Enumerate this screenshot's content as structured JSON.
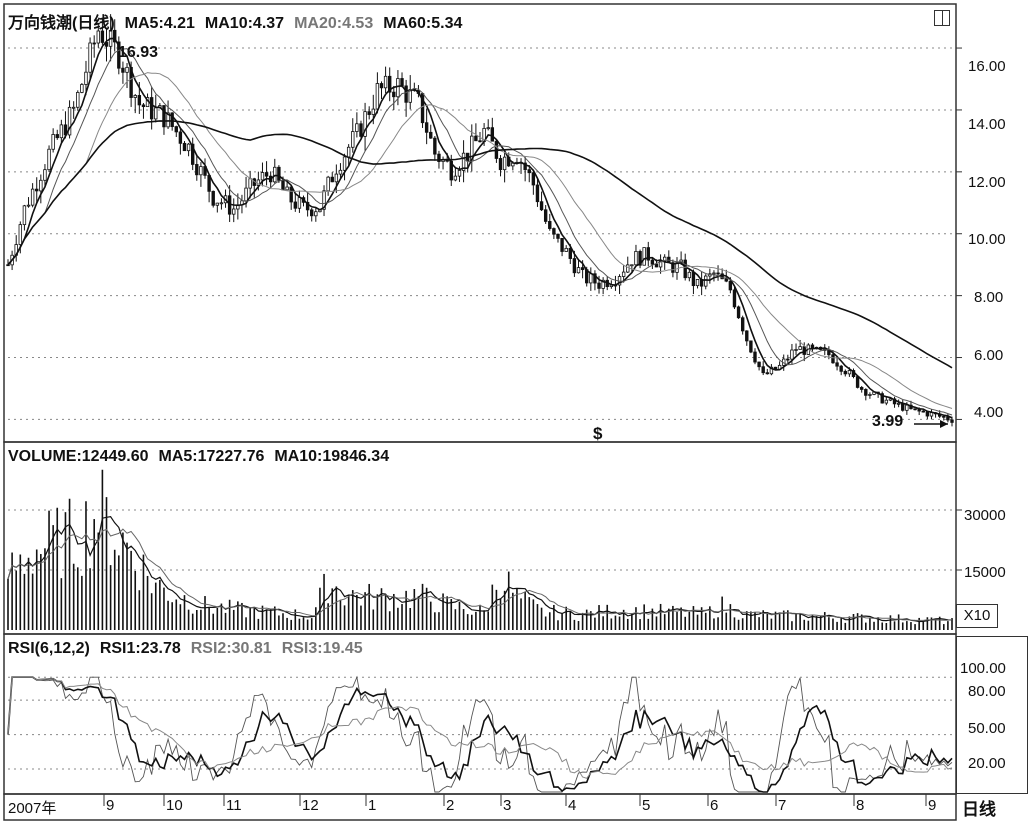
{
  "chart_data": [
    {
      "type": "candlestick",
      "panel": "price",
      "title": "万向钱潮(日线)",
      "indicators": [
        {
          "name": "MA5",
          "label": "MA5:4.21",
          "value": 4.21
        },
        {
          "name": "MA10",
          "label": "MA10:4.37",
          "value": 4.37
        },
        {
          "name": "MA20",
          "label": "MA20:4.53",
          "value": 4.53
        },
        {
          "name": "MA60",
          "label": "MA60:5.34",
          "value": 5.34
        }
      ],
      "y_ticks": [
        "16.00",
        "14.00",
        "12.00",
        "10.00",
        "8.00",
        "6.00",
        "4.00"
      ],
      "ylim": [
        3.4,
        17.1
      ],
      "x_ticks": [
        "2007年",
        "9",
        "10",
        "11",
        "12",
        "1",
        "2",
        "3",
        "4",
        "5",
        "6",
        "7",
        "8",
        "9"
      ],
      "close_path": [
        [
          0,
          9.0
        ],
        [
          4,
          10.8
        ],
        [
          10,
          12.6
        ],
        [
          16,
          14.0
        ],
        [
          22,
          16.6
        ],
        [
          27,
          15.8
        ],
        [
          32,
          14.2
        ],
        [
          38,
          13.8
        ],
        [
          44,
          12.8
        ],
        [
          50,
          11.2
        ],
        [
          55,
          10.8
        ],
        [
          60,
          11.6
        ],
        [
          64,
          12.0
        ],
        [
          68,
          11.2
        ],
        [
          72,
          10.8
        ],
        [
          76,
          10.9
        ],
        [
          80,
          12.2
        ],
        [
          85,
          13.2
        ],
        [
          90,
          14.6
        ],
        [
          95,
          14.8
        ],
        [
          100,
          14.2
        ],
        [
          104,
          12.6
        ],
        [
          108,
          12.1
        ],
        [
          112,
          12.6
        ],
        [
          116,
          13.3
        ],
        [
          120,
          12.4
        ],
        [
          124,
          12.6
        ],
        [
          128,
          11.6
        ],
        [
          132,
          10.0
        ],
        [
          136,
          9.4
        ],
        [
          140,
          8.6
        ],
        [
          144,
          8.4
        ],
        [
          148,
          8.6
        ],
        [
          152,
          9.2
        ],
        [
          156,
          9.3
        ],
        [
          160,
          9.0
        ],
        [
          164,
          8.9
        ],
        [
          168,
          8.3
        ],
        [
          172,
          8.7
        ],
        [
          176,
          8.2
        ],
        [
          180,
          6.6
        ],
        [
          184,
          5.4
        ],
        [
          188,
          5.7
        ],
        [
          192,
          6.3
        ],
        [
          196,
          6.2
        ],
        [
          200,
          6.1
        ],
        [
          204,
          5.6
        ],
        [
          208,
          5.0
        ],
        [
          212,
          4.7
        ],
        [
          216,
          4.5
        ],
        [
          220,
          4.3
        ],
        [
          224,
          4.2
        ],
        [
          230,
          4.0
        ]
      ],
      "annotations": [
        {
          "text": "16.93",
          "value": 16.93,
          "kind": "high"
        },
        {
          "text": "3.99",
          "value": 3.99,
          "kind": "low"
        },
        {
          "text": "$",
          "kind": "marker"
        }
      ]
    },
    {
      "type": "bar",
      "panel": "volume",
      "indicators": [
        {
          "name": "VOLUME",
          "label": "VOLUME:12449.60",
          "value": 12449.6
        },
        {
          "name": "MA5",
          "label": "MA5:17227.76",
          "value": 17227.76
        },
        {
          "name": "MA10",
          "label": "MA10:19846.34",
          "value": 19846.34
        }
      ],
      "y_ticks": [
        "30000",
        "15000"
      ],
      "ylim": [
        0,
        40000
      ],
      "unit": "X10",
      "level_path": [
        [
          0,
          14000
        ],
        [
          6,
          20000
        ],
        [
          12,
          22000
        ],
        [
          18,
          24000
        ],
        [
          22,
          30000
        ],
        [
          26,
          24000
        ],
        [
          30,
          20000
        ],
        [
          35,
          12000
        ],
        [
          40,
          9000
        ],
        [
          48,
          6000
        ],
        [
          56,
          5000
        ],
        [
          66,
          4200
        ],
        [
          74,
          3500
        ],
        [
          78,
          12000
        ],
        [
          82,
          9000
        ],
        [
          90,
          8000
        ],
        [
          100,
          8500
        ],
        [
          108,
          6000
        ],
        [
          116,
          4500
        ],
        [
          120,
          14000
        ],
        [
          124,
          8000
        ],
        [
          130,
          4500
        ],
        [
          140,
          4000
        ],
        [
          150,
          5000
        ],
        [
          160,
          4500
        ],
        [
          170,
          4000
        ],
        [
          174,
          6000
        ],
        [
          180,
          3800
        ],
        [
          190,
          3500
        ],
        [
          200,
          3300
        ],
        [
          210,
          3000
        ],
        [
          220,
          2700
        ],
        [
          230,
          2200
        ]
      ]
    },
    {
      "type": "line",
      "panel": "rsi",
      "title": "RSI(6,12,2)",
      "indicators": [
        {
          "name": "RSI1",
          "label": "RSI1:23.78",
          "value": 23.78
        },
        {
          "name": "RSI2",
          "label": "RSI2:30.81",
          "value": 30.81
        },
        {
          "name": "RSI3",
          "label": "RSI3:19.45",
          "value": 19.45
        }
      ],
      "y_ticks": [
        "100.00",
        "80.00",
        "50.00",
        "20.00"
      ],
      "ylim": [
        0,
        115
      ]
    }
  ],
  "period_label": "日线",
  "icons": {
    "layout_toggle": "split-window-icon"
  }
}
